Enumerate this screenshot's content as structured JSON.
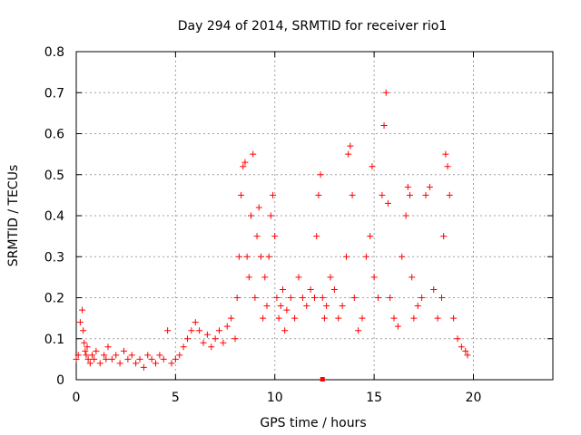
{
  "chart_data": {
    "type": "scatter",
    "title": "Day 294 of 2014, SRMTID for receiver rio1",
    "xlabel": "GPS time / hours",
    "ylabel": "SRMTID / TECUs",
    "xlim": [
      0,
      24
    ],
    "ylim": [
      0,
      0.8
    ],
    "x_ticks": [
      "0",
      "5",
      "10",
      "15",
      "20"
    ],
    "y_ticks": [
      "0",
      "0.1",
      "0.2",
      "0.3",
      "0.4",
      "0.5",
      "0.6",
      "0.7",
      "0.8"
    ],
    "grid": true,
    "marker": "+",
    "color": "#ff0000",
    "series": [
      {
        "name": "SRMTID",
        "x": [
          0.0,
          0.1,
          0.2,
          0.3,
          0.35,
          0.4,
          0.45,
          0.5,
          0.55,
          0.6,
          0.7,
          0.8,
          0.9,
          1.0,
          1.2,
          1.4,
          1.5,
          1.6,
          1.8,
          2.0,
          2.2,
          2.4,
          2.6,
          2.8,
          3.0,
          3.2,
          3.4,
          3.6,
          3.8,
          4.0,
          4.2,
          4.4,
          4.6,
          4.8,
          5.0,
          5.2,
          5.4,
          5.6,
          5.8,
          6.0,
          6.2,
          6.4,
          6.6,
          6.8,
          7.0,
          7.2,
          7.4,
          7.6,
          7.8,
          8.0,
          8.1,
          8.2,
          8.3,
          8.4,
          8.5,
          8.6,
          8.7,
          8.8,
          8.9,
          9.0,
          9.1,
          9.2,
          9.3,
          9.4,
          9.5,
          9.6,
          9.7,
          9.8,
          9.9,
          10.0,
          10.1,
          10.2,
          10.3,
          10.4,
          10.5,
          10.6,
          10.8,
          11.0,
          11.2,
          11.4,
          11.6,
          11.8,
          12.0,
          12.1,
          12.2,
          12.3,
          12.4,
          12.5,
          12.6,
          12.8,
          13.0,
          13.2,
          13.4,
          13.6,
          13.7,
          13.8,
          13.9,
          14.0,
          14.2,
          14.4,
          14.6,
          14.8,
          14.9,
          15.0,
          15.2,
          15.4,
          15.5,
          15.6,
          15.7,
          15.8,
          16.0,
          16.2,
          16.4,
          16.6,
          16.7,
          16.8,
          16.9,
          17.0,
          17.2,
          17.4,
          17.6,
          17.8,
          18.0,
          18.2,
          18.4,
          18.5,
          18.6,
          18.7,
          18.8,
          19.0,
          19.2,
          19.4,
          19.6,
          19.7
        ],
        "y": [
          0.05,
          0.06,
          0.14,
          0.17,
          0.12,
          0.09,
          0.07,
          0.06,
          0.08,
          0.05,
          0.04,
          0.06,
          0.05,
          0.07,
          0.04,
          0.06,
          0.05,
          0.08,
          0.05,
          0.06,
          0.04,
          0.07,
          0.05,
          0.06,
          0.04,
          0.05,
          0.03,
          0.06,
          0.05,
          0.04,
          0.06,
          0.05,
          0.12,
          0.04,
          0.05,
          0.06,
          0.08,
          0.1,
          0.12,
          0.14,
          0.12,
          0.09,
          0.11,
          0.08,
          0.1,
          0.12,
          0.09,
          0.13,
          0.15,
          0.1,
          0.2,
          0.3,
          0.45,
          0.52,
          0.53,
          0.3,
          0.25,
          0.4,
          0.55,
          0.2,
          0.35,
          0.42,
          0.3,
          0.15,
          0.25,
          0.18,
          0.3,
          0.4,
          0.45,
          0.35,
          0.2,
          0.15,
          0.18,
          0.22,
          0.12,
          0.17,
          0.2,
          0.15,
          0.25,
          0.2,
          0.18,
          0.22,
          0.2,
          0.35,
          0.45,
          0.5,
          0.2,
          0.15,
          0.18,
          0.25,
          0.22,
          0.15,
          0.18,
          0.3,
          0.55,
          0.57,
          0.45,
          0.2,
          0.12,
          0.15,
          0.3,
          0.35,
          0.52,
          0.25,
          0.2,
          0.45,
          0.62,
          0.7,
          0.43,
          0.2,
          0.15,
          0.13,
          0.3,
          0.4,
          0.47,
          0.45,
          0.25,
          0.15,
          0.18,
          0.2,
          0.45,
          0.47,
          0.22,
          0.15,
          0.2,
          0.35,
          0.55,
          0.52,
          0.45,
          0.15,
          0.1,
          0.08,
          0.07,
          0.06
        ]
      }
    ],
    "outlier_marker": {
      "x": 12.4,
      "y": 0.0
    }
  }
}
